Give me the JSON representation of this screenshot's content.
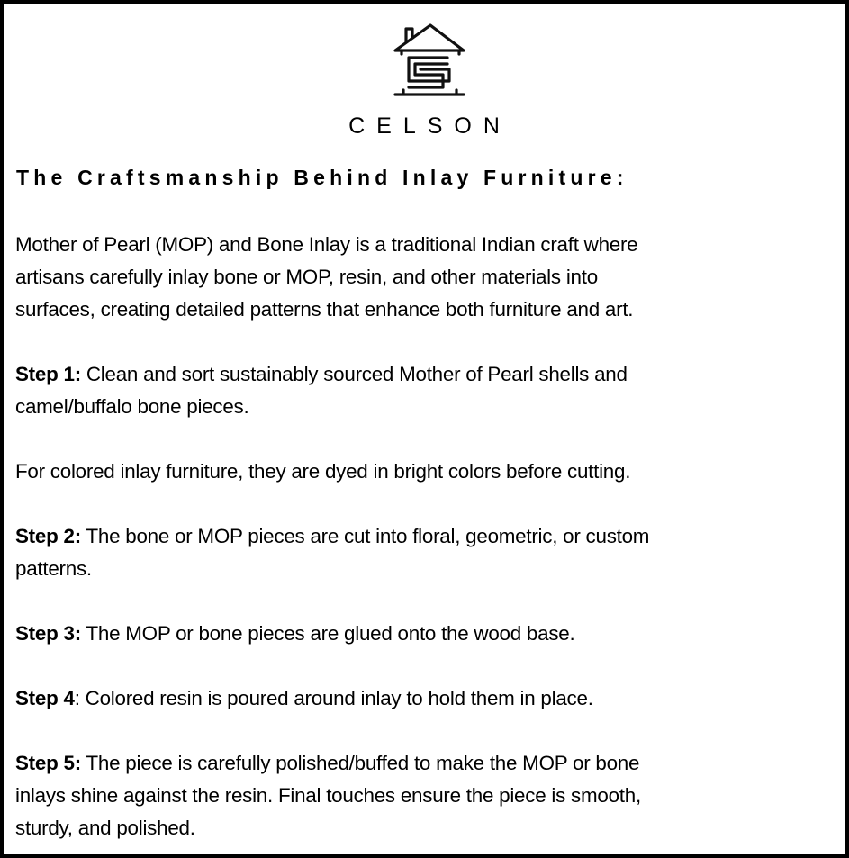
{
  "brand": {
    "name": "CELSON",
    "logo_icon": "house-s-logo-icon"
  },
  "heading": "The Craftsmanship Behind Inlay Furniture:",
  "paragraphs": [
    {
      "label": "",
      "lines": [
        "Mother of Pearl (MOP) and Bone Inlay is a traditional Indian craft where",
        "artisans carefully inlay bone or MOP, resin, and other materials into",
        "surfaces, creating detailed patterns that enhance both furniture and art."
      ]
    },
    {
      "label": "Step 1:",
      "lines": [
        " Clean and sort sustainably sourced Mother of Pearl shells and",
        "camel/buffalo bone pieces."
      ]
    },
    {
      "label": "",
      "lines": [
        "For colored inlay furniture, they are dyed in bright colors before cutting."
      ]
    },
    {
      "label": "Step 2:",
      "lines": [
        " The bone or MOP pieces are cut into floral, geometric, or custom",
        "patterns."
      ]
    },
    {
      "label": "Step 3:",
      "lines": [
        " The MOP or bone pieces are glued onto the wood base."
      ]
    },
    {
      "label": "Step 4",
      "lines": [
        ": Colored resin is poured around inlay to hold them in place."
      ]
    },
    {
      "label": "Step 5:",
      "lines": [
        " The piece is carefully polished/buffed to make the MOP or bone",
        "inlays shine against the resin. Final touches ensure the piece is smooth,",
        "sturdy, and polished."
      ]
    }
  ]
}
